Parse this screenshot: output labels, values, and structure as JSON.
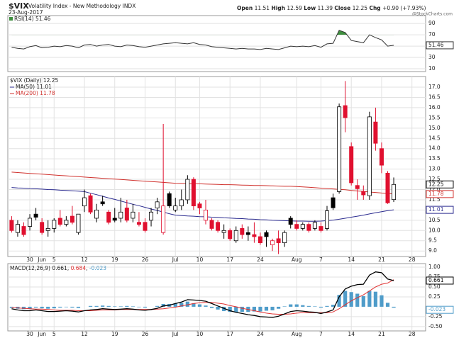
{
  "header": {
    "symbol": "$VIX",
    "name": "Volatility Index - New Methodology INDX",
    "date": "23-Aug-2017",
    "fields": [
      "Open",
      "High",
      "Low",
      "Close",
      "Chg"
    ],
    "change": "+0.90 (+7.93%)",
    "watermark": "@StockCharts.com"
  },
  "chart_data": [
    {
      "type": "line",
      "series": [
        {
          "name": "RSI(14)",
          "color": "#333333",
          "values": [
            48,
            46,
            45,
            49,
            51,
            47,
            48,
            50,
            49,
            51,
            50,
            47,
            52,
            53,
            50,
            52,
            53,
            50,
            49,
            52,
            51,
            49,
            48,
            50,
            52,
            54,
            55,
            56,
            55,
            54,
            56,
            53,
            52,
            49,
            48,
            47,
            46,
            45,
            46,
            45,
            45,
            44,
            46,
            45,
            44,
            47,
            50,
            49,
            50,
            49,
            51,
            48,
            54,
            55,
            78,
            74,
            60,
            58,
            56,
            70,
            65,
            61,
            50,
            51.46,
            null,
            null,
            null
          ]
        }
      ],
      "overbought": 70,
      "fill_color": "#3f8f3f",
      "ylim": [
        5,
        104
      ],
      "yticks": [
        90,
        70,
        50,
        30,
        10
      ],
      "grid": true
    },
    {
      "type": "candlestick",
      "name": "$VIX (Daily)",
      "categories": [
        null,
        null,
        null,
        "30",
        null,
        "Jun",
        null,
        "5",
        null,
        null,
        null,
        null,
        "12",
        null,
        null,
        null,
        null,
        "19",
        null,
        null,
        null,
        null,
        "26",
        null,
        null,
        null,
        null,
        "Jul",
        null,
        null,
        null,
        "10",
        null,
        null,
        null,
        null,
        "17",
        null,
        null,
        null,
        null,
        "24",
        null,
        null,
        null,
        null,
        null,
        "Aug",
        null,
        null,
        null,
        "7",
        null,
        null,
        null,
        null,
        "14",
        null,
        null,
        null,
        null,
        "21",
        null,
        null,
        null,
        null,
        "28"
      ],
      "open": [
        10.5,
        9.9,
        10.2,
        10.2,
        10.8,
        10.4,
        10.0,
        10.1,
        10.6,
        10.3,
        10.7,
        9.9,
        11.2,
        11.7,
        10.6,
        11.4,
        10.9,
        10.6,
        10.6,
        11.1,
        10.6,
        10.4,
        10.4,
        10.5,
        11.1,
        9.9,
        11.8,
        11.0,
        11.2,
        11.5,
        12.5,
        11.3,
        10.5,
        10.5,
        10.4,
        9.9,
        10.0,
        9.5,
        10.1,
        9.9,
        9.8,
        9.7,
        9.9,
        9.3,
        9.6,
        9.4,
        10.6,
        10.3,
        10.1,
        10.3,
        10.1,
        10.2,
        10.1,
        11.6,
        11.9,
        16.1,
        14.1,
        12.2,
        11.9,
        11.7,
        15.3,
        14.0,
        12.8,
        11.51,
        null,
        null,
        null
      ],
      "high": [
        10.7,
        10.5,
        10.4,
        10.8,
        11.1,
        10.6,
        10.5,
        10.6,
        11.0,
        10.7,
        11.2,
        10.8,
        12.0,
        11.8,
        11.3,
        11.7,
        11.0,
        11.1,
        11.6,
        11.5,
        11.3,
        10.9,
        10.6,
        11.1,
        11.6,
        15.2,
        11.9,
        11.6,
        12.0,
        12.7,
        12.6,
        11.4,
        11.5,
        10.6,
        10.5,
        10.3,
        10.1,
        10.2,
        10.3,
        10.2,
        10.4,
        9.9,
        10.0,
        9.6,
        10.0,
        10.0,
        10.7,
        10.5,
        10.4,
        10.4,
        10.5,
        10.4,
        11.2,
        11.8,
        16.2,
        17.3,
        14.3,
        12.5,
        12.2,
        15.8,
        16.0,
        14.3,
        12.9,
        12.59,
        null,
        null,
        null
      ],
      "low": [
        9.9,
        9.7,
        9.7,
        10.0,
        10.5,
        9.8,
        9.7,
        9.9,
        10.2,
        10.2,
        10.3,
        9.8,
        10.9,
        10.8,
        10.4,
        11.2,
        10.3,
        10.4,
        10.4,
        10.4,
        10.4,
        10.2,
        9.9,
        10.2,
        10.8,
        9.8,
        11.1,
        10.9,
        11.0,
        11.3,
        11.0,
        10.8,
        10.3,
        10.0,
        9.9,
        9.6,
        9.5,
        9.4,
        9.6,
        9.5,
        9.4,
        9.3,
        9.2,
        9.0,
        8.85,
        9.2,
        10.1,
        10.0,
        10.0,
        9.9,
        10.0,
        9.9,
        10.0,
        11.0,
        11.8,
        14.8,
        12.2,
        11.5,
        11.5,
        11.5,
        13.9,
        12.8,
        11.3,
        11.39,
        null,
        null,
        null
      ],
      "close": [
        10.0,
        10.3,
        9.8,
        10.6,
        10.65,
        9.9,
        10.1,
        10.5,
        10.3,
        10.5,
        10.4,
        10.8,
        11.6,
        10.9,
        11.0,
        11.3,
        10.4,
        10.5,
        10.9,
        10.5,
        10.9,
        10.3,
        10.0,
        10.9,
        11.4,
        11.2,
        11.2,
        11.2,
        11.5,
        12.5,
        11.2,
        11.1,
        11.0,
        10.1,
        10.0,
        10.0,
        9.6,
        10.0,
        9.8,
        9.8,
        9.7,
        9.4,
        9.7,
        9.5,
        9.4,
        9.9,
        10.3,
        10.1,
        10.3,
        10.0,
        10.4,
        10.0,
        10.96,
        11.11,
        16.04,
        15.51,
        12.33,
        12.04,
        11.74,
        15.55,
        14.26,
        13.19,
        11.35,
        12.25,
        null,
        null,
        null
      ],
      "up_color": "#000000",
      "down_color": "#e0102f",
      "series": [
        {
          "name": "MA(50)",
          "color": "#2b2b8f",
          "values": [
            12.1,
            12.08,
            12.07,
            12.05,
            12.04,
            12.02,
            12.0,
            11.99,
            11.97,
            11.96,
            11.94,
            11.92,
            11.9,
            11.82,
            11.75,
            11.67,
            11.59,
            11.52,
            11.44,
            11.36,
            11.28,
            11.21,
            11.13,
            11.05,
            10.98,
            10.9,
            10.82,
            10.75,
            10.73,
            10.71,
            10.7,
            10.68,
            10.67,
            10.65,
            10.64,
            10.62,
            10.61,
            10.59,
            10.58,
            10.56,
            10.55,
            10.53,
            10.52,
            10.5,
            10.49,
            10.48,
            10.47,
            10.46,
            10.46,
            10.45,
            10.45,
            10.46,
            10.48,
            10.51,
            10.55,
            10.6,
            10.65,
            10.7,
            10.75,
            10.81,
            10.87,
            10.92,
            10.97,
            11.01,
            null,
            null,
            null
          ]
        },
        {
          "name": "MA(200)",
          "color": "#d0312d",
          "values": [
            12.85,
            12.83,
            12.81,
            12.79,
            12.77,
            12.75,
            12.73,
            12.71,
            12.69,
            12.67,
            12.65,
            12.63,
            12.61,
            12.59,
            12.57,
            12.55,
            12.53,
            12.51,
            12.49,
            12.47,
            12.45,
            12.43,
            12.41,
            12.39,
            12.37,
            12.35,
            12.33,
            12.31,
            12.3,
            12.29,
            12.28,
            12.28,
            12.27,
            12.26,
            12.25,
            12.24,
            12.24,
            12.23,
            12.22,
            12.21,
            12.2,
            12.2,
            12.19,
            12.18,
            12.17,
            12.16,
            12.16,
            12.15,
            12.13,
            12.11,
            12.09,
            12.07,
            12.05,
            12.03,
            12.01,
            11.99,
            11.96,
            11.93,
            11.91,
            11.88,
            11.86,
            11.83,
            11.81,
            11.78,
            null,
            null,
            null
          ]
        }
      ],
      "ylim": [
        8.73,
        17.52
      ],
      "yticks": [
        {
          "value": 9,
          "label": "9.0"
        },
        9.5,
        {
          "value": 10,
          "label": "10.0"
        },
        10.5,
        {
          "value": 11,
          "label": "11.0"
        },
        11.5,
        {
          "value": 12,
          "label": "12.0"
        },
        12.5,
        {
          "value": 13,
          "label": "13.0"
        },
        13.5,
        {
          "value": 14,
          "label": "14.0"
        },
        14.5,
        {
          "value": 15,
          "label": "15.0"
        },
        15.5,
        {
          "value": 16,
          "label": "16.0"
        },
        16.5,
        {
          "value": 17,
          "label": "17.0"
        }
      ],
      "grid": true
    },
    {
      "type": "macd",
      "name": "MACD(12,26,9)",
      "categories": [
        null,
        null,
        null,
        "30",
        null,
        "Jun",
        null,
        "5",
        null,
        null,
        null,
        null,
        "12",
        null,
        null,
        null,
        null,
        "19",
        null,
        null,
        null,
        null,
        "26",
        null,
        null,
        null,
        null,
        "Jul",
        null,
        null,
        null,
        "10",
        null,
        null,
        null,
        null,
        "17",
        null,
        null,
        null,
        null,
        "24",
        null,
        null,
        null,
        null,
        null,
        "Aug",
        null,
        null,
        null,
        "7",
        null,
        null,
        null,
        null,
        "14",
        null,
        null,
        null,
        null,
        "21",
        null,
        null,
        null,
        null,
        "28"
      ],
      "macd": {
        "color": "#000000",
        "values": [
          -0.05,
          -0.08,
          -0.1,
          -0.1,
          -0.08,
          -0.1,
          -0.12,
          -0.12,
          -0.11,
          -0.1,
          -0.11,
          -0.13,
          -0.1,
          -0.08,
          -0.07,
          -0.05,
          -0.06,
          -0.07,
          -0.06,
          -0.05,
          -0.06,
          -0.08,
          -0.09,
          -0.07,
          -0.04,
          0.02,
          0.04,
          0.08,
          0.12,
          0.18,
          0.17,
          0.16,
          0.14,
          0.08,
          0.02,
          -0.04,
          -0.1,
          -0.14,
          -0.17,
          -0.2,
          -0.22,
          -0.25,
          -0.26,
          -0.27,
          -0.24,
          -0.18,
          -0.12,
          -0.1,
          -0.11,
          -0.13,
          -0.14,
          -0.17,
          -0.13,
          -0.08,
          0.25,
          0.45,
          0.52,
          0.56,
          0.57,
          0.8,
          0.88,
          0.86,
          0.7,
          0.661,
          null,
          null,
          null
        ]
      },
      "signal": {
        "color": "#e03030",
        "values": [
          -0.02,
          -0.03,
          -0.04,
          -0.05,
          -0.06,
          -0.06,
          -0.07,
          -0.08,
          -0.09,
          -0.09,
          -0.09,
          -0.1,
          -0.1,
          -0.1,
          -0.09,
          -0.08,
          -0.08,
          -0.08,
          -0.07,
          -0.07,
          -0.07,
          -0.07,
          -0.07,
          -0.07,
          -0.06,
          -0.05,
          -0.03,
          -0.01,
          0.02,
          0.05,
          0.08,
          0.1,
          0.11,
          0.11,
          0.09,
          0.07,
          0.03,
          0.0,
          -0.04,
          -0.07,
          -0.1,
          -0.13,
          -0.16,
          -0.18,
          -0.19,
          -0.19,
          -0.18,
          -0.16,
          -0.15,
          -0.15,
          -0.15,
          -0.15,
          -0.15,
          -0.13,
          -0.05,
          0.05,
          0.15,
          0.23,
          0.3,
          0.4,
          0.5,
          0.57,
          0.6,
          0.684,
          null,
          null,
          null
        ]
      },
      "histogram": {
        "color": "#4f9cc9",
        "values": [
          -0.03,
          -0.05,
          -0.06,
          -0.05,
          -0.02,
          -0.04,
          -0.05,
          -0.04,
          -0.02,
          -0.01,
          -0.02,
          -0.03,
          0.0,
          0.02,
          0.02,
          0.03,
          0.02,
          0.01,
          0.01,
          0.02,
          0.01,
          -0.01,
          -0.02,
          0.0,
          0.02,
          0.07,
          0.07,
          0.09,
          0.1,
          0.13,
          0.09,
          0.06,
          0.03,
          -0.03,
          -0.07,
          -0.11,
          -0.13,
          -0.14,
          -0.13,
          -0.13,
          -0.12,
          -0.12,
          -0.1,
          -0.09,
          -0.05,
          0.01,
          0.06,
          0.06,
          0.04,
          0.02,
          0.01,
          -0.02,
          0.02,
          0.05,
          0.3,
          0.4,
          0.37,
          0.33,
          0.27,
          0.4,
          0.38,
          0.29,
          0.1,
          -0.023,
          null,
          null,
          null
        ]
      },
      "ylim": [
        -0.61,
        1.09
      ],
      "yticks": [
        {
          "value": 1,
          "label": "1.00"
        },
        0.75,
        {
          "value": 0.5,
          "label": "0.50"
        },
        0.25,
        -0.25,
        {
          "value": -0.5,
          "label": "-0.50"
        }
      ],
      "grid": true
    }
  ]
}
